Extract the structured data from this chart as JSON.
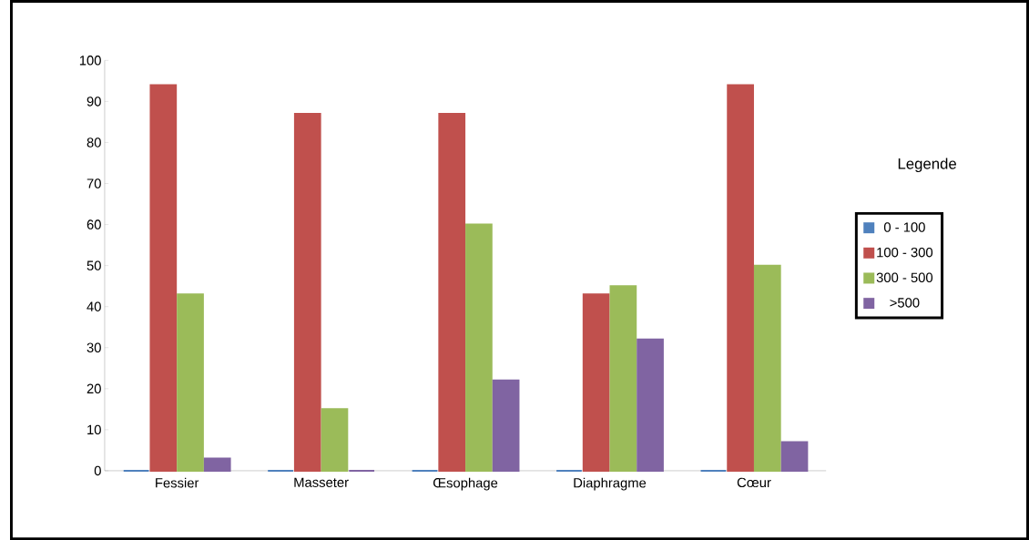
{
  "chart_data": {
    "type": "bar",
    "categories": [
      "Fessier",
      "Masseter",
      "Œsophage",
      "Diaphragme",
      "Cœur"
    ],
    "series": [
      {
        "name": "0 - 100",
        "color": "#4f81bd",
        "values": [
          0,
          0,
          0,
          0,
          0
        ]
      },
      {
        "name": "100 - 300",
        "color": "#c0504d",
        "values": [
          94,
          87,
          87,
          43,
          94
        ]
      },
      {
        "name": "300 - 500",
        "color": "#9bbb59",
        "values": [
          43,
          15,
          60,
          45,
          50
        ]
      },
      {
        "name": ">500",
        "color": "#8064a2",
        "values": [
          3,
          0,
          22,
          32,
          7
        ]
      }
    ],
    "legend_title": "Legende",
    "legend": "right",
    "grid": false,
    "ylim": [
      0,
      100
    ],
    "yticks": [
      0,
      10,
      20,
      30,
      40,
      50,
      60,
      70,
      80,
      90,
      100
    ]
  }
}
